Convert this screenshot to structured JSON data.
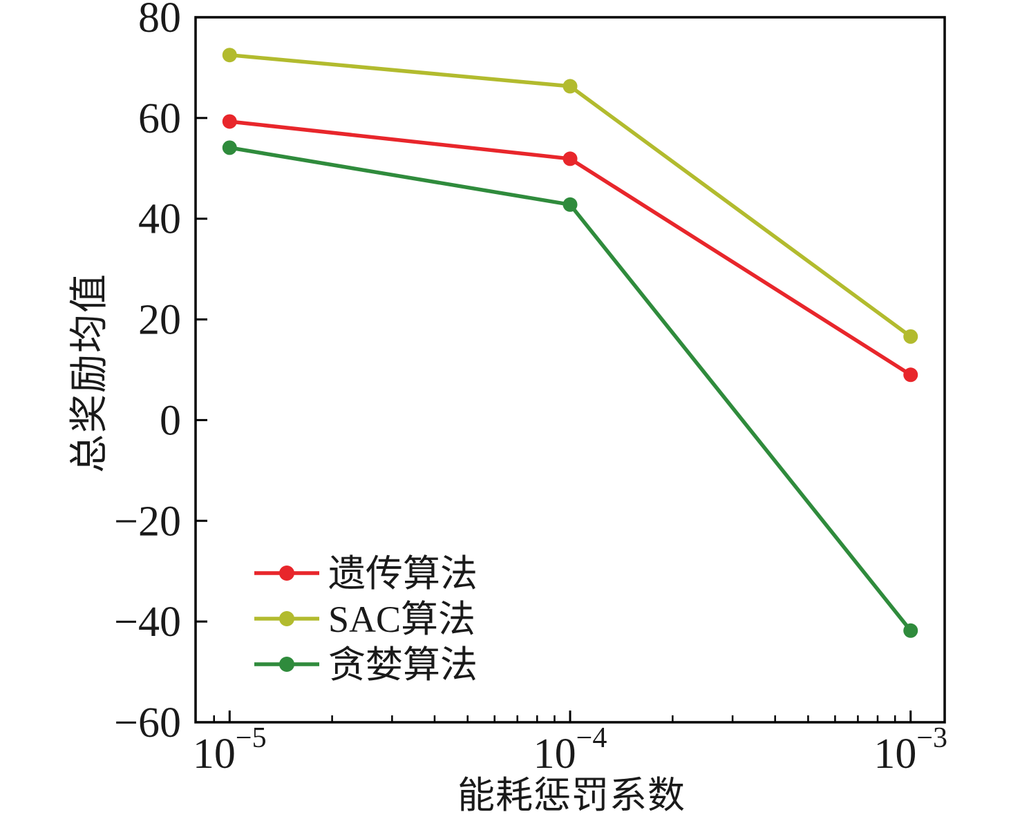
{
  "page": {
    "background": "#ffffff"
  },
  "chart_data": {
    "type": "line",
    "title": "",
    "xlabel": "能耗惩罚系数",
    "ylabel": "总奖励均值",
    "x_scale": "log",
    "x": [
      1e-05,
      0.0001,
      0.001
    ],
    "x_tick_base": "10",
    "x_tick_exponents": [
      -5,
      -4,
      -3
    ],
    "xlim_log10": [
      -5.1,
      -2.9
    ],
    "y_ticks": [
      -60,
      -40,
      -20,
      0,
      20,
      40,
      60,
      80
    ],
    "ylim": [
      -60,
      80
    ],
    "grid": false,
    "legend_position": "inside lower-left",
    "series": [
      {
        "name": "遗传算法",
        "color": "#e8262b",
        "values": [
          59.3,
          51.9,
          9.0
        ]
      },
      {
        "name": "SAC算法",
        "color": "#b2bb2e",
        "values": [
          72.5,
          66.3,
          16.6
        ]
      },
      {
        "name": "贪婪算法",
        "color": "#2f8b3c",
        "values": [
          54.1,
          42.8,
          -41.8
        ]
      }
    ],
    "axis_color": "#000000",
    "text_color": "#1a1a1a"
  }
}
